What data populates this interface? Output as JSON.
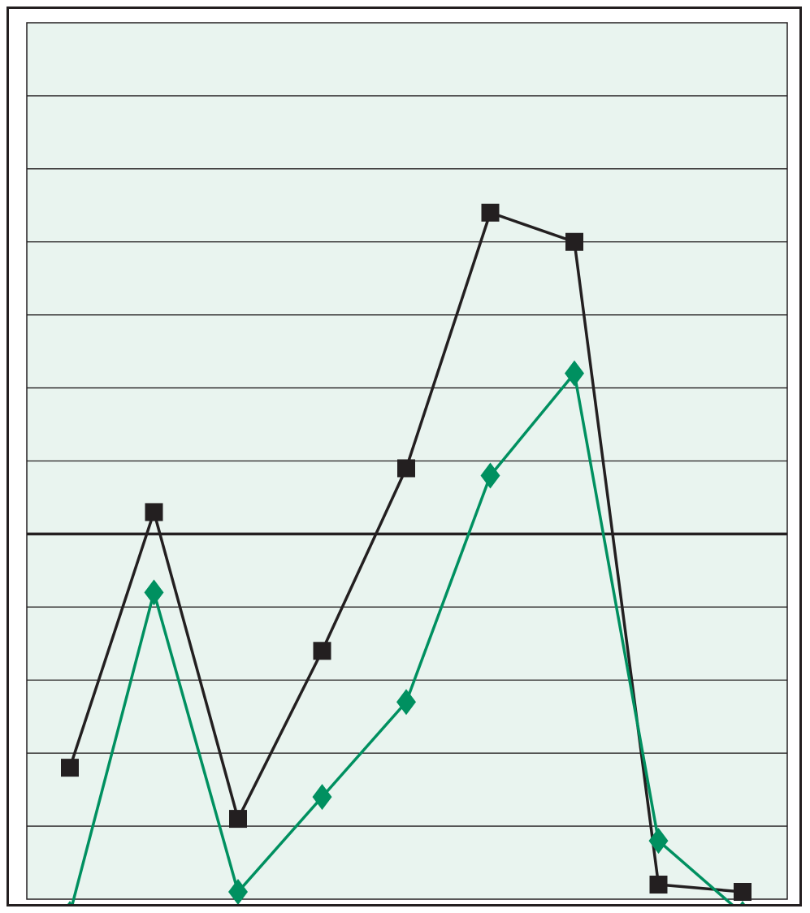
{
  "chart_data": {
    "type": "line",
    "title": "",
    "xlabel": "",
    "ylabel": "",
    "x": [
      1,
      2,
      3,
      4,
      5,
      6,
      7,
      8,
      9
    ],
    "ylim": [
      -1.0,
      0.2
    ],
    "yticks": [
      0.1,
      0.0,
      -0.1,
      -0.2,
      -0.3,
      -0.4,
      -0.5,
      -0.6,
      -0.7,
      -0.8,
      -0.9
    ],
    "reference_line": -0.5,
    "grid": true,
    "legend": "none",
    "series": [
      {
        "marker": "square",
        "color": "#231f20",
        "values": [
          -0.82,
          -0.47,
          -0.89,
          -0.66,
          -0.41,
          -0.06,
          -0.1,
          -0.98,
          -0.99
        ]
      },
      {
        "marker": "diamond",
        "color": "#009060",
        "values": [
          -1.02,
          -0.58,
          -0.99,
          -0.86,
          -0.73,
          -0.42,
          -0.28,
          -0.92,
          -1.02
        ]
      }
    ],
    "colors": {
      "plot_background": "#e9f4ef",
      "grid": "#231f20",
      "frame": "#231f20"
    }
  }
}
